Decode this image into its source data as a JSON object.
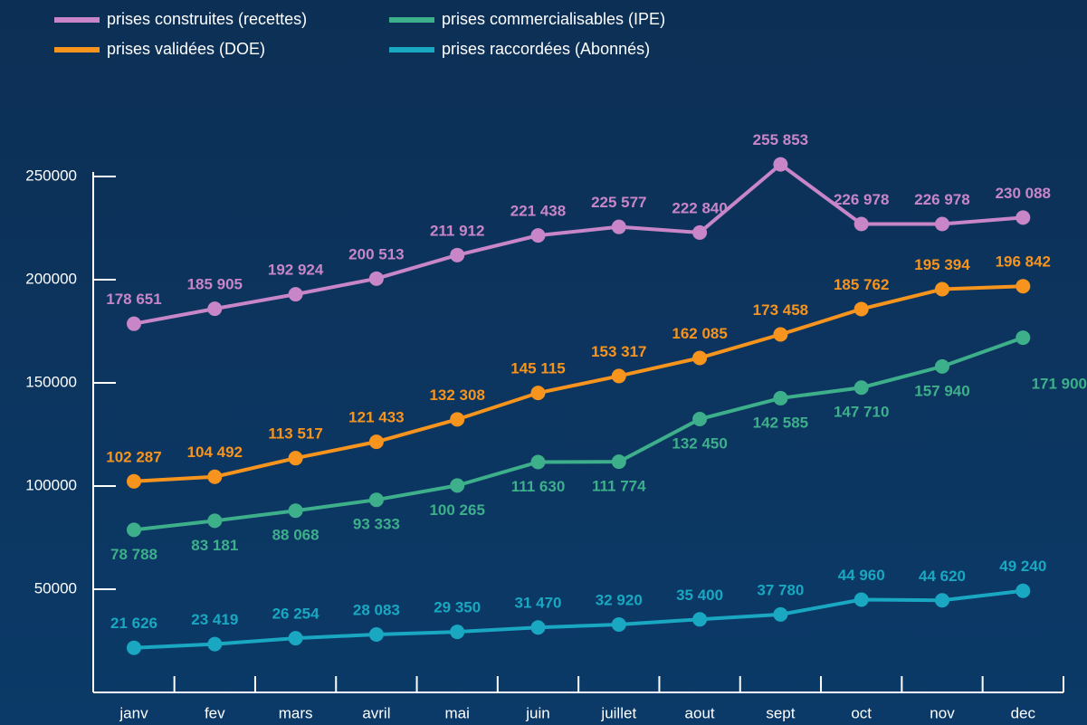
{
  "chart_data": {
    "type": "line",
    "categories": [
      "janv",
      "fev",
      "mars",
      "avril",
      "mai",
      "juin",
      "juillet",
      "aout",
      "sept",
      "oct",
      "nov",
      "dec"
    ],
    "ylim": [
      0,
      250000
    ],
    "yticks": [
      50000,
      100000,
      150000,
      200000,
      250000
    ],
    "series": [
      {
        "name": "prises construites (recettes)",
        "color": "#c886c8",
        "values": [
          178651,
          185905,
          192924,
          200513,
          211912,
          221438,
          225577,
          222840,
          255853,
          226978,
          226978,
          230088
        ],
        "value_labels": [
          "178 651",
          "185 905",
          "192 924",
          "200 513",
          "211 912",
          "221 438",
          "225 577",
          "222 840",
          "255 853",
          "226 978",
          "226 978",
          "230 088"
        ]
      },
      {
        "name": "prises validées (DOE)",
        "color": "#f7941d",
        "values": [
          102287,
          104492,
          113517,
          121433,
          132308,
          145115,
          153317,
          162085,
          173458,
          185762,
          195394,
          196842
        ],
        "value_labels": [
          "102 287",
          "104 492",
          "113 517",
          "121 433",
          "132 308",
          "145 115",
          "153 317",
          "162 085",
          "173 458",
          "185 762",
          "195 394",
          "196 842"
        ]
      },
      {
        "name": "prises commercialisables (IPE)",
        "color": "#3daf8a",
        "values": [
          78788,
          83181,
          88068,
          93333,
          100265,
          111630,
          111774,
          132450,
          142585,
          147710,
          157940,
          171900
        ],
        "value_labels": [
          "78 788",
          "83 181",
          "88 068",
          "93 333",
          "100 265",
          "111 630",
          "111 774",
          "132 450",
          "142 585",
          "147 710",
          "157 940",
          "171 900"
        ]
      },
      {
        "name": "prises raccordées (Abonnés)",
        "color": "#19a7c1",
        "values": [
          21626,
          23419,
          26254,
          28083,
          29350,
          31470,
          32920,
          35400,
          37780,
          44960,
          44620,
          49240
        ],
        "value_labels": [
          "21 626",
          "23 419",
          "26 254",
          "28 083",
          "29 350",
          "31 470",
          "32 920",
          "35 400",
          "37 780",
          "44 960",
          "44 620",
          "49 240"
        ]
      }
    ]
  }
}
